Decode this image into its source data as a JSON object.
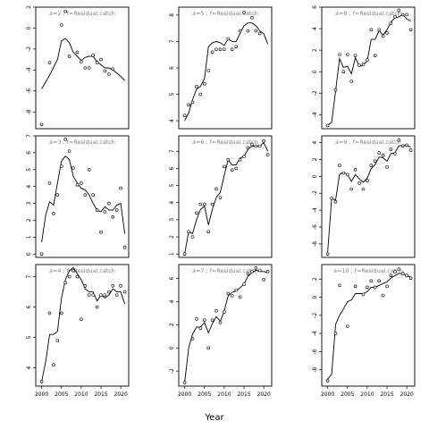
{
  "chart_data": {
    "type": "scatter",
    "xlabel": "Year",
    "x_ticks": [
      2000,
      2005,
      2010,
      2015,
      2020
    ],
    "x_range": [
      1998.5,
      2022
    ],
    "panels": [
      {
        "label": "a=2 ; f=Residual.catch",
        "ylim": [
          -9.6,
          2
        ],
        "y_ticks": [
          2,
          0,
          -2,
          -4,
          -6,
          -8
        ],
        "points": {
          "x": [
            2000,
            2002,
            2004,
            2005,
            2006,
            2007,
            2008,
            2009,
            2010,
            2011,
            2012,
            2013,
            2014,
            2015,
            2016,
            2017,
            2018,
            2019,
            2020,
            2021
          ],
          "y": [
            -9.2,
            -3.3,
            null,
            0.3,
            1.6,
            -2.7,
            null,
            -2.3,
            -3.2,
            -3.8,
            -3.8,
            -2.6,
            -3.3,
            -3.0,
            -4.1,
            -4.4,
            -3.9,
            null,
            null,
            null
          ]
        },
        "fit": {
          "x": [
            2000,
            2002,
            2004,
            2005,
            2006,
            2007,
            2008,
            2009,
            2010,
            2011,
            2012,
            2013,
            2014,
            2015,
            2016,
            2017,
            2018,
            2019,
            2020,
            2021
          ],
          "y": [
            -5.8,
            -4.5,
            -3.0,
            -1.2,
            -1.0,
            -1.4,
            -2.3,
            -2.7,
            -3.1,
            -2.8,
            -2.7,
            -2.7,
            -3.2,
            -3.5,
            -3.8,
            -3.8,
            -4.0,
            -4.3,
            -4.6,
            -5.0
          ]
        }
      },
      {
        "label": "a=5 ; f=Residual.catch",
        "ylim": [
          3.7,
          8.3
        ],
        "y_ticks": [
          8,
          7,
          6,
          5,
          4
        ],
        "points": {
          "x": [
            2000,
            2001,
            2002,
            2003,
            2004,
            2005,
            2006,
            2007,
            2008,
            2009,
            2010,
            2011,
            2012,
            2013,
            2014,
            2015,
            2016,
            2017,
            2018,
            2019,
            2020
          ],
          "y": [
            4.2,
            4.6,
            4.7,
            5.3,
            5.0,
            5.4,
            5.9,
            6.6,
            6.7,
            6.7,
            6.7,
            7.1,
            6.7,
            6.8,
            7.4,
            8.1,
            7.4,
            7.9,
            7.4,
            7.3,
            null
          ]
        },
        "fit": {
          "x": [
            2000,
            2001,
            2002,
            2003,
            2004,
            2005,
            2006,
            2007,
            2008,
            2009,
            2010,
            2011,
            2012,
            2013,
            2014,
            2015,
            2016,
            2017,
            2018,
            2019,
            2020,
            2021
          ],
          "y": [
            4.0,
            4.3,
            4.8,
            5.2,
            5.3,
            5.6,
            6.8,
            6.95,
            7.0,
            6.95,
            6.85,
            7.1,
            7.0,
            7.0,
            7.3,
            7.6,
            7.7,
            7.7,
            7.6,
            7.4,
            7.3,
            6.9
          ]
        }
      },
      {
        "label": "a=8 ; f=Residual.catch",
        "ylim": [
          -5.3,
          6
        ],
        "y_ticks": [
          6,
          4,
          2,
          0,
          -2,
          -4
        ],
        "points": {
          "x": [
            2000,
            2001,
            2002,
            2003,
            2004,
            2005,
            2006,
            2007,
            2008,
            2009,
            2010,
            2011,
            2012,
            2013,
            2014,
            2015,
            2016,
            2017,
            2018,
            2019,
            2020,
            2021
          ],
          "y": [
            -5.0,
            null,
            -1.7,
            1.6,
            0.0,
            1.6,
            -0.9,
            1.5,
            0.6,
            0.7,
            1.1,
            3.9,
            1.5,
            3.9,
            3.3,
            3.6,
            4.5,
            5.1,
            5.7,
            5.3,
            5.3,
            3.9
          ]
        },
        "fit": {
          "x": [
            2000,
            2001,
            2002,
            2003,
            2004,
            2005,
            2006,
            2007,
            2008,
            2009,
            2010,
            2011,
            2012,
            2013,
            2014,
            2015,
            2016,
            2017,
            2018,
            2019,
            2020,
            2021
          ],
          "y": [
            -5.0,
            -4.7,
            -1.8,
            1.2,
            0.4,
            0.5,
            -0.2,
            1.3,
            0.5,
            0.6,
            1.0,
            3.0,
            3.0,
            3.8,
            3.4,
            3.9,
            4.6,
            5.0,
            5.1,
            5.3,
            4.9,
            4.7
          ]
        }
      },
      {
        "label": "a=3 ; f=Residual.catch",
        "ylim": [
          -0.2,
          7
        ],
        "y_ticks": [
          7,
          6,
          5,
          4,
          3,
          2,
          1,
          0
        ],
        "points": {
          "x": [
            2000,
            2002,
            2003,
            2004,
            2005,
            2006,
            2007,
            2008,
            2009,
            2010,
            2011,
            2012,
            2013,
            2014,
            2015,
            2016,
            2017,
            2018,
            2019,
            2020,
            2021
          ],
          "y": [
            0.0,
            4.2,
            2.4,
            3.5,
            5.2,
            6.8,
            6.1,
            5.1,
            4.1,
            4.2,
            3.5,
            5.0,
            3.5,
            2.6,
            1.3,
            2.5,
            3.0,
            2.2,
            2.6,
            3.9,
            0.4
          ]
        },
        "fit": {
          "x": [
            2000,
            2001,
            2002,
            2003,
            2004,
            2005,
            2006,
            2007,
            2008,
            2009,
            2010,
            2011,
            2012,
            2013,
            2014,
            2015,
            2016,
            2017,
            2018,
            2019,
            2020,
            2021
          ],
          "y": [
            0.7,
            2.3,
            3.1,
            2.9,
            4.2,
            5.5,
            5.8,
            5.6,
            4.6,
            4.2,
            3.9,
            3.8,
            3.5,
            3.0,
            2.6,
            2.5,
            2.8,
            2.6,
            2.6,
            2.9,
            3.0,
            1.2
          ]
        }
      },
      {
        "label": "a=6 ; f=Residual.catch",
        "ylim": [
          0.8,
          7.9
        ],
        "y_ticks": [
          7,
          6,
          5,
          4,
          3,
          2,
          1
        ],
        "points": {
          "x": [
            2000,
            2001,
            2002,
            2003,
            2004,
            2005,
            2006,
            2007,
            2008,
            2009,
            2010,
            2011,
            2012,
            2013,
            2014,
            2015,
            2016,
            2017,
            2018,
            2019,
            2020,
            2021
          ],
          "y": [
            1.0,
            2.3,
            2.0,
            3.4,
            3.9,
            3.9,
            2.3,
            3.9,
            4.8,
            4.3,
            6.1,
            6.5,
            5.9,
            6.0,
            6.5,
            6.7,
            7.2,
            7.4,
            7.3,
            7.3,
            7.6,
            6.8
          ]
        },
        "fit": {
          "x": [
            2000,
            2001,
            2002,
            2003,
            2004,
            2005,
            2006,
            2007,
            2008,
            2009,
            2010,
            2011,
            2012,
            2013,
            2014,
            2015,
            2016,
            2017,
            2018,
            2019,
            2020,
            2021
          ],
          "y": [
            1.0,
            2.3,
            2.2,
            3.0,
            3.6,
            3.8,
            2.7,
            3.6,
            4.3,
            4.6,
            5.6,
            6.5,
            6.2,
            6.2,
            6.6,
            6.7,
            7.1,
            7.3,
            7.3,
            7.3,
            7.5,
            7.0
          ]
        }
      },
      {
        "label": "a=9 ; f=Residual.catch",
        "ylim": [
          -9.6,
          4.8
        ],
        "y_ticks": [
          4,
          2,
          0,
          -2,
          -4,
          -6,
          -8
        ],
        "points": {
          "x": [
            2000,
            2001,
            2002,
            2003,
            2004,
            2005,
            2006,
            2007,
            2008,
            2009,
            2010,
            2011,
            2012,
            2013,
            2014,
            2015,
            2016,
            2017,
            2018,
            2019,
            2020,
            2021
          ],
          "y": [
            -9.2,
            -2.6,
            -3.0,
            1.3,
            0.4,
            0.2,
            -1.5,
            0.8,
            -0.8,
            -1.5,
            -0.5,
            1.3,
            1.8,
            2.8,
            2.5,
            1.1,
            3.2,
            2.7,
            4.3,
            3.6,
            3.7,
            3.1
          ]
        },
        "fit": {
          "x": [
            2000,
            2001,
            2002,
            2003,
            2004,
            2005,
            2006,
            2007,
            2008,
            2009,
            2010,
            2011,
            2012,
            2013,
            2014,
            2015,
            2016,
            2017,
            2018,
            2019,
            2020,
            2021
          ],
          "y": [
            -9.0,
            -2.6,
            -2.8,
            0.2,
            0.5,
            0.2,
            -0.6,
            0.2,
            -0.3,
            -0.7,
            -0.2,
            0.9,
            1.4,
            2.3,
            2.2,
            1.8,
            2.7,
            2.8,
            3.6,
            3.7,
            3.6,
            3.5
          ]
        }
      },
      {
        "label": "a=4 ; f=Residual.catch",
        "ylim": [
          3.4,
          7.4
        ],
        "y_ticks": [
          7,
          6,
          5,
          4
        ],
        "points": {
          "x": [
            2000,
            2001,
            2002,
            2003,
            2004,
            2005,
            2006,
            2007,
            2008,
            2009,
            2010,
            2011,
            2012,
            2013,
            2014,
            2015,
            2016,
            2017,
            2018,
            2019,
            2020,
            2021
          ],
          "y": [
            3.55,
            null,
            5.8,
            4.1,
            4.9,
            5.8,
            6.8,
            7.0,
            7.2,
            7.0,
            5.6,
            6.7,
            6.4,
            6.4,
            6.0,
            6.4,
            6.4,
            6.5,
            6.7,
            6.4,
            6.7,
            6.5
          ]
        },
        "fit": {
          "x": [
            2000,
            2001,
            2002,
            2003,
            2004,
            2005,
            2006,
            2007,
            2008,
            2009,
            2010,
            2011,
            2012,
            2013,
            2014,
            2015,
            2016,
            2017,
            2018,
            2019,
            2020,
            2021
          ],
          "y": [
            3.55,
            4.2,
            5.1,
            5.1,
            5.2,
            6.3,
            6.9,
            7.2,
            7.3,
            7.1,
            6.9,
            6.6,
            6.5,
            6.5,
            6.2,
            6.4,
            6.3,
            6.4,
            6.6,
            6.5,
            6.5,
            6.1
          ]
        }
      },
      {
        "label": "a=7 ; f=Residual.catch",
        "ylim": [
          -3.3,
          7.2
        ],
        "y_ticks": [
          6,
          4,
          2,
          0,
          -2
        ],
        "points": {
          "x": [
            2000,
            2001,
            2002,
            2003,
            2004,
            2005,
            2006,
            2007,
            2008,
            2009,
            2010,
            2011,
            2012,
            2013,
            2014,
            2015,
            2016,
            2017,
            2018,
            2019,
            2020,
            2021
          ],
          "y": [
            -3.0,
            null,
            0.8,
            2.5,
            1.7,
            2.4,
            0.0,
            2.4,
            3.2,
            2.2,
            3.1,
            4.7,
            4.5,
            5.0,
            4.4,
            5.5,
            6.4,
            6.6,
            6.9,
            6.7,
            5.9,
            6.6
          ]
        },
        "fit": {
          "x": [
            2000,
            2001,
            2002,
            2003,
            2004,
            2005,
            2006,
            2007,
            2008,
            2009,
            2010,
            2011,
            2012,
            2013,
            2014,
            2015,
            2016,
            2017,
            2018,
            2019,
            2020,
            2021
          ],
          "y": [
            -3.0,
            0.0,
            1.2,
            1.8,
            1.8,
            2.2,
            1.3,
            2.1,
            2.7,
            2.3,
            3.2,
            4.5,
            4.8,
            4.9,
            5.2,
            5.5,
            6.2,
            6.5,
            6.7,
            6.6,
            6.6,
            6.5
          ]
        }
      },
      {
        "label": "a=10 ; f=Residual.catch",
        "ylim": [
          -9.8,
          3.6
        ],
        "y_ticks": [
          2,
          0,
          -2,
          -4,
          -6,
          -8
        ],
        "points": {
          "x": [
            2000,
            2001,
            2002,
            2003,
            2004,
            2005,
            2006,
            2007,
            2008,
            2009,
            2010,
            2011,
            2012,
            2013,
            2014,
            2015,
            2016,
            2017,
            2018,
            2019,
            2020,
            2021
          ],
          "y": [
            -9.2,
            null,
            -4.0,
            1.3,
            null,
            -3.2,
            null,
            1.2,
            null,
            0.3,
            1.1,
            1.8,
            1.1,
            1.8,
            0.2,
            1.2,
            2.4,
            2.8,
            3.1,
            2.6,
            2.4,
            2.1
          ]
        },
        "fit": {
          "x": [
            2000,
            2001,
            2002,
            2003,
            2004,
            2005,
            2006,
            2007,
            2008,
            2009,
            2010,
            2011,
            2012,
            2013,
            2014,
            2015,
            2016,
            2017,
            2018,
            2019,
            2020,
            2021
          ],
          "y": [
            -9.0,
            -8.5,
            -3.0,
            -2.0,
            -1.3,
            -0.5,
            -0.3,
            0.4,
            0.4,
            0.4,
            0.6,
            1.1,
            1.1,
            1.3,
            1.5,
            1.7,
            2.1,
            2.4,
            2.6,
            2.6,
            2.4,
            2.2
          ]
        }
      }
    ]
  }
}
